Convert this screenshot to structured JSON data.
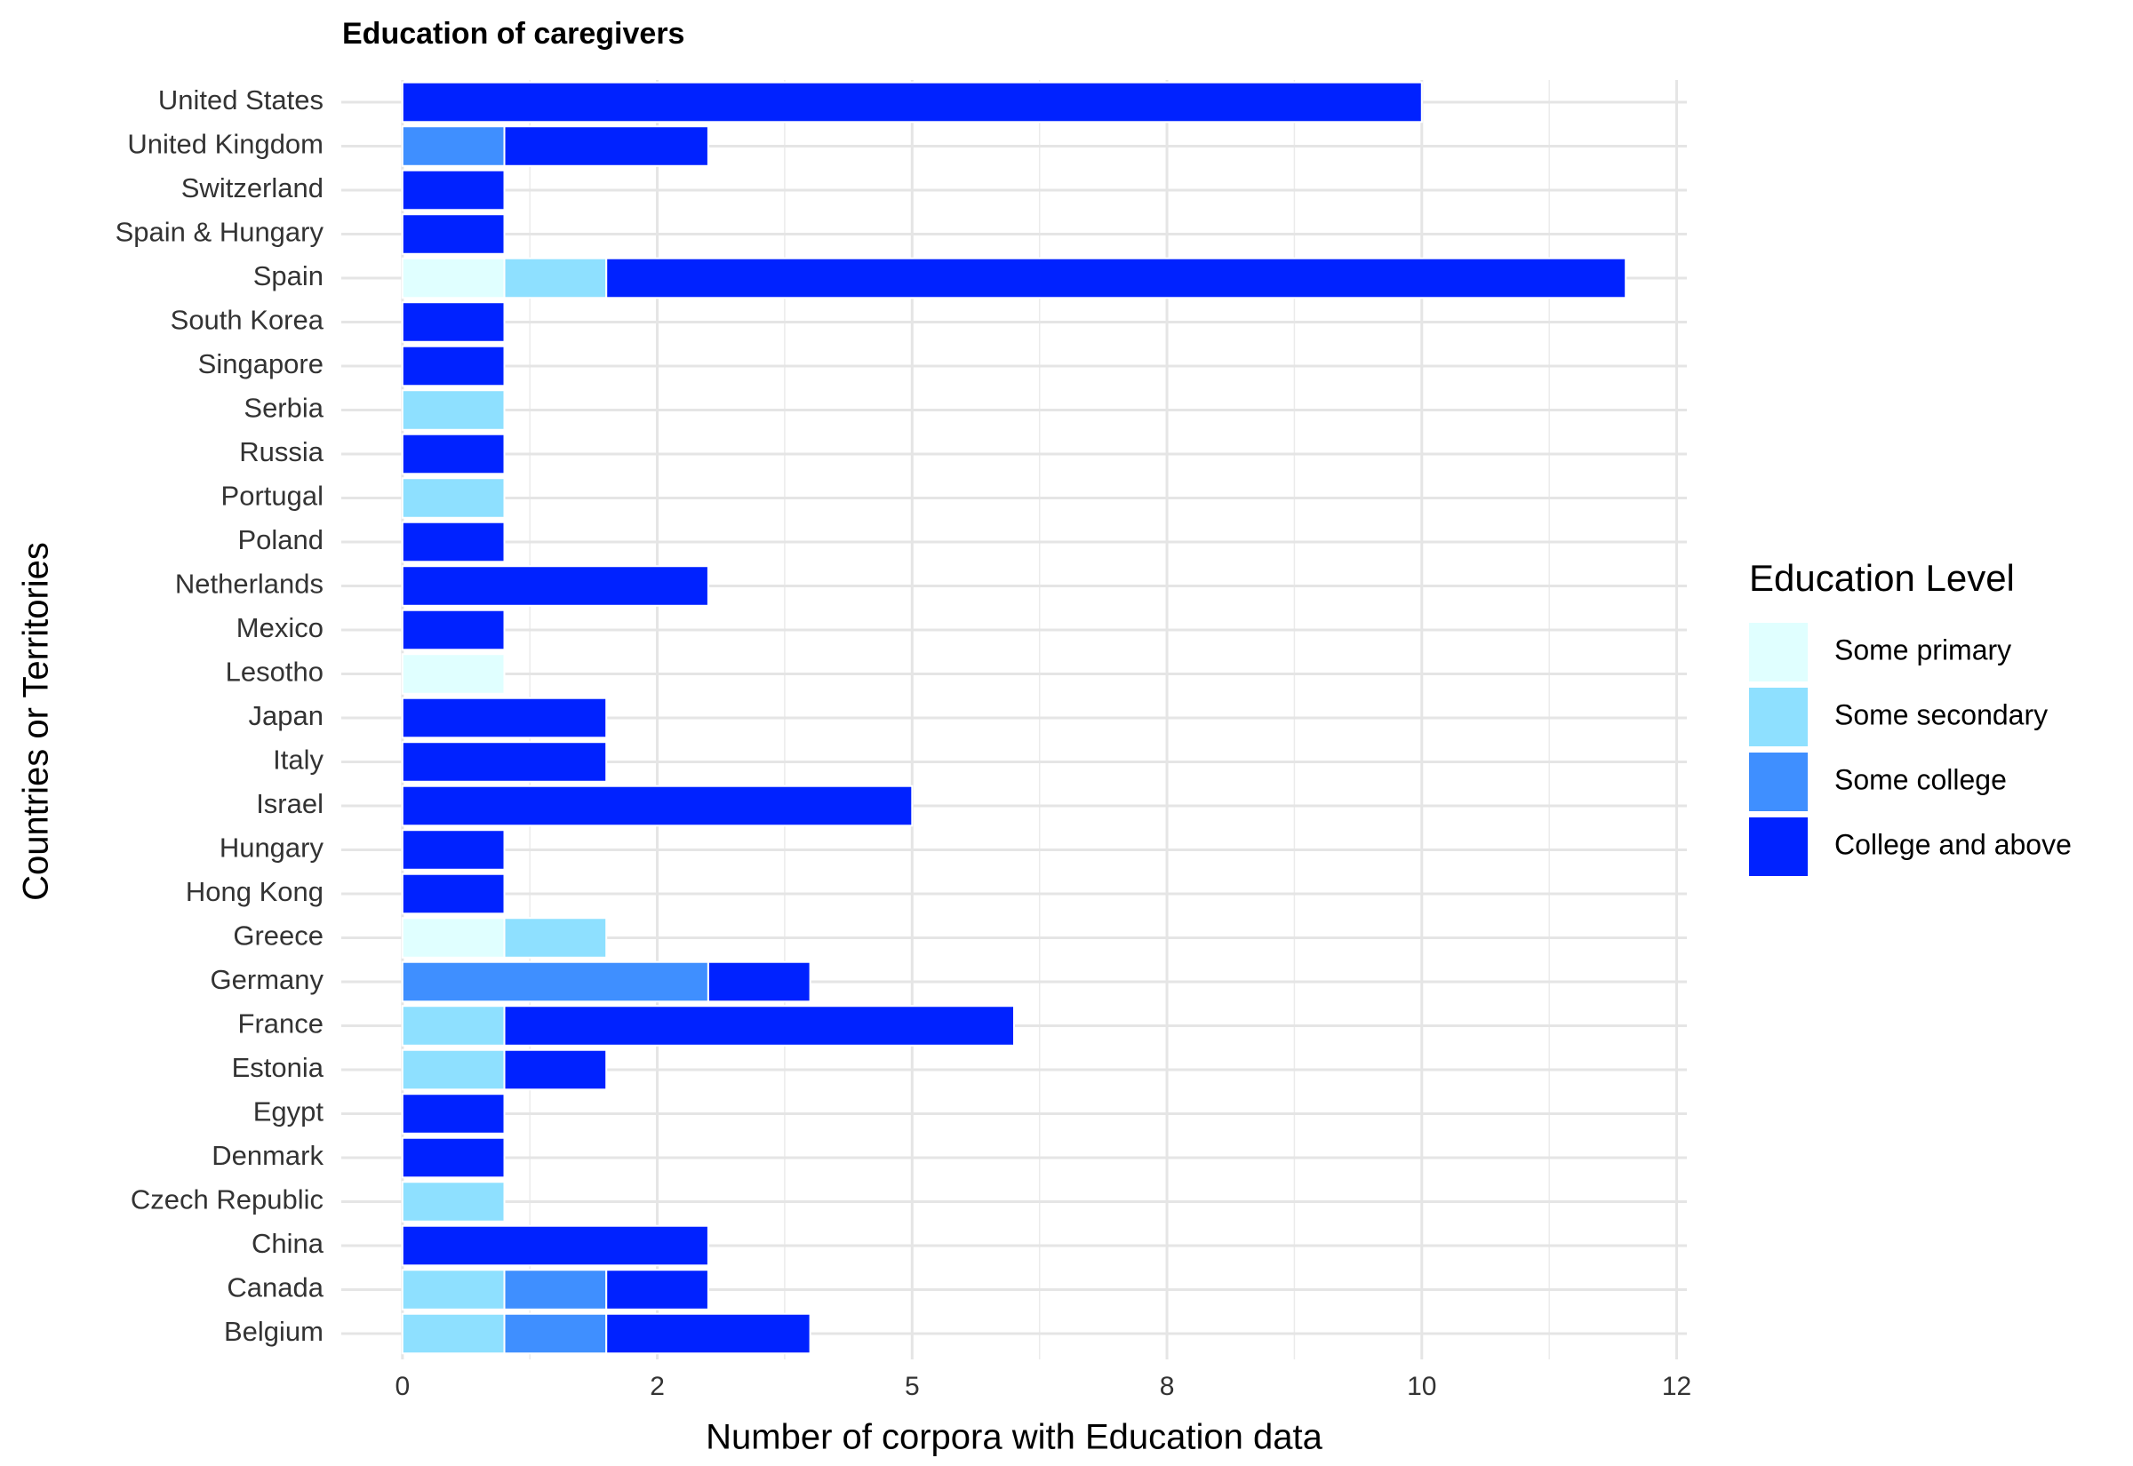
{
  "chart_data": {
    "type": "stacked_bar_horizontal",
    "title": "Education of caregivers",
    "x_label": "Number of corpora with Education data",
    "y_label": "Countries or Territories",
    "legend_title": "Education Level",
    "legend_position": "right",
    "grid": true,
    "categories": [
      "United States",
      "United Kingdom",
      "Switzerland",
      "Spain & Hungary",
      "Spain",
      "South Korea",
      "Singapore",
      "Serbia",
      "Russia",
      "Portugal",
      "Poland",
      "Netherlands",
      "Mexico",
      "Lesotho",
      "Japan",
      "Italy",
      "Israel",
      "Hungary",
      "Hong Kong",
      "Greece",
      "Germany",
      "France",
      "Estonia",
      "Egypt",
      "Denmark",
      "Czech Republic",
      "China",
      "Canada",
      "Belgium"
    ],
    "series": [
      {
        "name": "Some primary",
        "color": "#e0ffff",
        "values": [
          0,
          0,
          0,
          0,
          1,
          0,
          0,
          0,
          0,
          0,
          0,
          0,
          0,
          1,
          0,
          0,
          0,
          0,
          0,
          1,
          0,
          0,
          0,
          0,
          0,
          0,
          0,
          0,
          0
        ]
      },
      {
        "name": "Some secondary",
        "color": "#8ee0ff",
        "values": [
          0,
          0,
          0,
          0,
          1,
          0,
          0,
          1,
          0,
          1,
          0,
          0,
          0,
          0,
          0,
          0,
          0,
          0,
          0,
          1,
          0,
          1,
          1,
          0,
          0,
          1,
          0,
          1,
          1
        ]
      },
      {
        "name": "Some college",
        "color": "#3f8fff",
        "values": [
          0,
          1,
          0,
          0,
          0,
          0,
          0,
          0,
          0,
          0,
          0,
          0,
          0,
          0,
          0,
          0,
          0,
          0,
          0,
          0,
          3,
          0,
          0,
          0,
          0,
          0,
          0,
          1,
          1
        ]
      },
      {
        "name": "College and above",
        "color": "#0022ff",
        "values": [
          10,
          2,
          1,
          1,
          10,
          1,
          1,
          0,
          1,
          0,
          1,
          3,
          1,
          0,
          2,
          2,
          5,
          1,
          1,
          0,
          1,
          5,
          1,
          1,
          1,
          0,
          3,
          1,
          2
        ]
      }
    ],
    "xlim": [
      -0.6,
      12.6
    ],
    "xticks": [
      0,
      {
        "value": 2.5,
        "label": "2"
      },
      5,
      {
        "value": 7.5,
        "label": "8"
      },
      10,
      {
        "value": 12.5,
        "label": "12"
      }
    ]
  }
}
